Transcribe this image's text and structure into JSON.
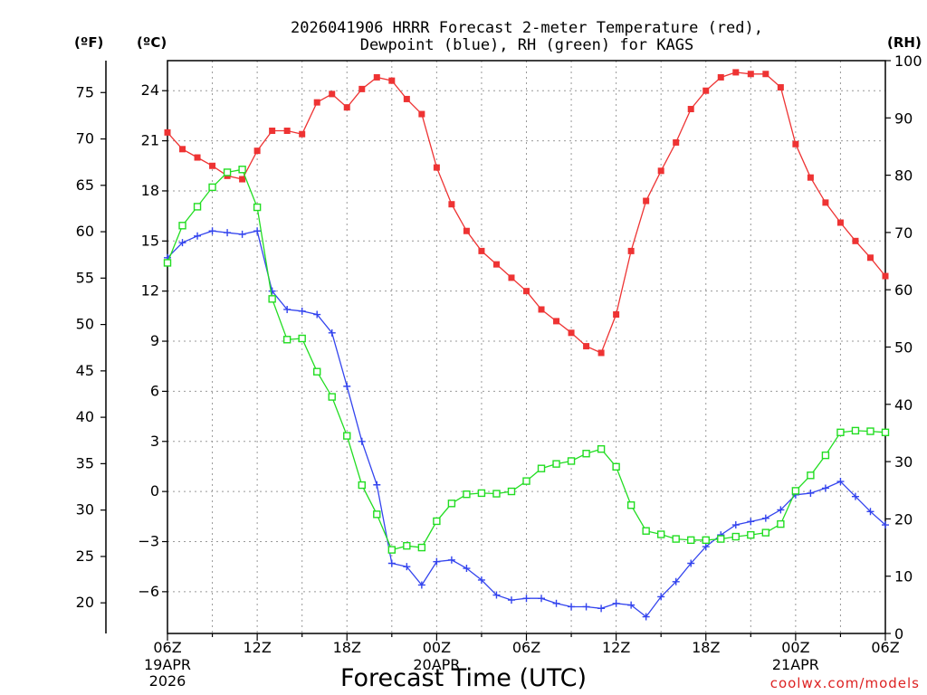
{
  "chart_data": {
    "type": "line",
    "title_line1": "2026041906 HRRR Forecast 2-meter Temperature (red),",
    "title_line2": "Dewpoint (blue), RH (green) for KAGS",
    "xlabel": "Forecast Time (UTC)",
    "credit": "coolwx.com/models",
    "units": {
      "f": "(ºF)",
      "c": "(ºC)",
      "rh": "(RH)"
    },
    "x_range_hours": [
      0,
      48
    ],
    "x_ticks": [
      {
        "hour": 0,
        "line1": "06Z",
        "line2": "19APR",
        "line3": "2026"
      },
      {
        "hour": 6,
        "line1": "12Z",
        "line2": "",
        "line3": ""
      },
      {
        "hour": 12,
        "line1": "18Z",
        "line2": "",
        "line3": ""
      },
      {
        "hour": 18,
        "line1": "00Z",
        "line2": "20APR",
        "line3": ""
      },
      {
        "hour": 24,
        "line1": "06Z",
        "line2": "",
        "line3": ""
      },
      {
        "hour": 30,
        "line1": "12Z",
        "line2": "",
        "line3": ""
      },
      {
        "hour": 36,
        "line1": "18Z",
        "line2": "",
        "line3": ""
      },
      {
        "hour": 42,
        "line1": "00Z",
        "line2": "21APR",
        "line3": ""
      },
      {
        "hour": 48,
        "line1": "06Z",
        "line2": "",
        "line3": ""
      }
    ],
    "celsius_axis": {
      "range": [
        -8.5,
        25.8
      ],
      "ticks": [
        24,
        21,
        18,
        15,
        12,
        9,
        6,
        3,
        0,
        -3,
        -6
      ]
    },
    "fahrenheit_axis": {
      "ticks": [
        75,
        70,
        65,
        60,
        55,
        50,
        45,
        40,
        35,
        30,
        25,
        20
      ]
    },
    "rh_axis": {
      "range": [
        0,
        100
      ],
      "ticks": [
        100,
        90,
        80,
        70,
        60,
        50,
        40,
        30,
        20,
        10,
        0
      ]
    },
    "series": [
      {
        "name": "Temperature",
        "color": "#ee3333",
        "axis": "celsius",
        "marker": "filled-square",
        "values": [
          21.5,
          20.5,
          20.0,
          19.5,
          18.9,
          18.7,
          20.4,
          21.6,
          21.6,
          21.4,
          23.3,
          23.8,
          23.0,
          24.1,
          24.8,
          24.6,
          23.5,
          22.6,
          19.4,
          17.2,
          15.6,
          14.4,
          13.6,
          12.8,
          12.0,
          10.9,
          10.2,
          9.5,
          8.7,
          8.3,
          10.6,
          14.4,
          17.4,
          19.2,
          20.9,
          22.9,
          24.0,
          24.8,
          25.1,
          25.0,
          25.0,
          24.2,
          20.8,
          18.8,
          17.3,
          16.1,
          15.0,
          14.0,
          12.9
        ]
      },
      {
        "name": "Dewpoint",
        "color": "#3344ee",
        "axis": "celsius",
        "marker": "plus",
        "values": [
          14.0,
          14.9,
          15.3,
          15.6,
          15.5,
          15.4,
          15.6,
          12.0,
          10.9,
          10.8,
          10.6,
          9.5,
          6.3,
          3.0,
          0.4,
          -4.3,
          -4.5,
          -5.6,
          -4.2,
          -4.1,
          -4.6,
          -5.3,
          -6.2,
          -6.5,
          -6.4,
          -6.4,
          -6.7,
          -6.9,
          -6.9,
          -7.0,
          -6.7,
          -6.8,
          -7.5,
          -6.3,
          -5.4,
          -4.3,
          -3.3,
          -2.6,
          -2.0,
          -1.8,
          -1.6,
          -1.1,
          -0.2,
          -0.1,
          0.2,
          0.6,
          -0.3,
          -1.2,
          -2.0
        ]
      },
      {
        "name": "RH",
        "color": "#22dd22",
        "axis": "rh",
        "marker": "open-square",
        "values": [
          64.7,
          71.2,
          74.5,
          77.9,
          80.5,
          81.0,
          74.4,
          58.4,
          51.3,
          51.5,
          45.7,
          41.3,
          34.5,
          25.9,
          20.8,
          14.6,
          15.3,
          15.0,
          19.6,
          22.7,
          24.3,
          24.5,
          24.4,
          24.8,
          26.6,
          28.8,
          29.6,
          30.1,
          31.4,
          32.2,
          29.1,
          22.4,
          17.9,
          17.3,
          16.5,
          16.3,
          16.3,
          16.5,
          16.9,
          17.2,
          17.6,
          19.1,
          24.9,
          27.6,
          31.1,
          35.1,
          35.4,
          35.3,
          35.1
        ]
      }
    ],
    "grid": true
  }
}
